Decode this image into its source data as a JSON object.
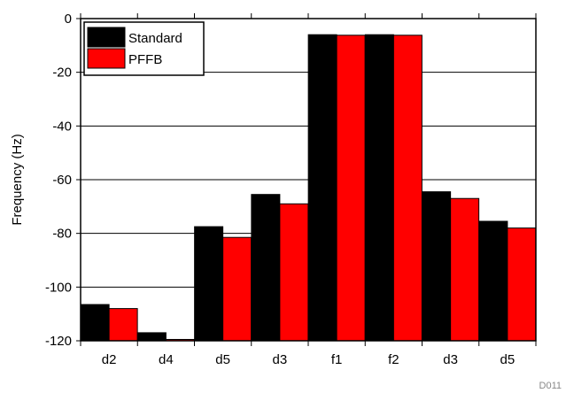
{
  "chart_data": {
    "type": "bar",
    "categories": [
      "d2",
      "d4",
      "d5",
      "d3",
      "f1",
      "f2",
      "d3",
      "d5"
    ],
    "series": [
      {
        "name": "Standard",
        "color": "#000000",
        "values": [
          -106.5,
          -117,
          -77.5,
          -65.5,
          -6,
          -6,
          -64.5,
          -75.5
        ]
      },
      {
        "name": "PFFB",
        "color": "#ff0000",
        "values": [
          -108,
          -119.5,
          -81.5,
          -69,
          -6.2,
          -6.2,
          -67,
          -78
        ]
      }
    ],
    "ylabel": "Frequency (Hz)",
    "xlabel": "",
    "ylim": [
      -120,
      0
    ],
    "yticks": [
      0,
      -20,
      -40,
      -60,
      -80,
      -100,
      -120
    ],
    "grid": true,
    "legend_position": "top-left"
  },
  "footer": {
    "code": "D011"
  }
}
